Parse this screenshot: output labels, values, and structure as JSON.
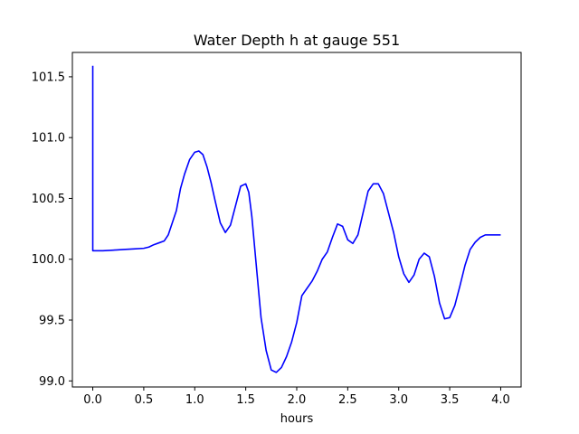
{
  "chart_data": {
    "type": "line",
    "title": "Water Depth h at gauge 551",
    "xlabel": "hours",
    "ylabel": "",
    "xlim": [
      -0.2,
      4.2
    ],
    "ylim": [
      98.95,
      101.7
    ],
    "x_ticks": [
      "0.0",
      "0.5",
      "1.0",
      "1.5",
      "2.0",
      "2.5",
      "3.0",
      "3.5",
      "4.0"
    ],
    "x_tick_values": [
      0.0,
      0.5,
      1.0,
      1.5,
      2.0,
      2.5,
      3.0,
      3.5,
      4.0
    ],
    "y_ticks": [
      "99.0",
      "99.5",
      "100.0",
      "100.5",
      "101.0",
      "101.5"
    ],
    "y_tick_values": [
      99.0,
      99.5,
      100.0,
      100.5,
      101.0,
      101.5
    ],
    "grid": false,
    "series": [
      {
        "color": "#0000ff",
        "x": [
          0.0,
          0.0,
          0.005,
          0.1,
          0.2,
          0.3,
          0.4,
          0.5,
          0.55,
          0.6,
          0.65,
          0.7,
          0.74,
          0.78,
          0.82,
          0.86,
          0.9,
          0.95,
          1.0,
          1.04,
          1.08,
          1.12,
          1.16,
          1.2,
          1.25,
          1.3,
          1.35,
          1.4,
          1.45,
          1.5,
          1.53,
          1.56,
          1.6,
          1.65,
          1.7,
          1.75,
          1.8,
          1.85,
          1.9,
          1.95,
          2.0,
          2.05,
          2.1,
          2.15,
          2.2,
          2.25,
          2.3,
          2.35,
          2.4,
          2.45,
          2.5,
          2.55,
          2.6,
          2.65,
          2.7,
          2.75,
          2.8,
          2.85,
          2.9,
          2.95,
          3.0,
          3.05,
          3.1,
          3.15,
          3.2,
          3.25,
          3.3,
          3.35,
          3.4,
          3.45,
          3.5,
          3.55,
          3.6,
          3.65,
          3.7,
          3.75,
          3.8,
          3.85,
          3.9,
          3.95,
          4.0
        ],
        "values": [
          101.59,
          100.07,
          100.07,
          100.07,
          100.075,
          100.08,
          100.085,
          100.09,
          100.1,
          100.12,
          100.135,
          100.15,
          100.2,
          100.3,
          100.4,
          100.58,
          100.7,
          100.82,
          100.88,
          100.89,
          100.86,
          100.76,
          100.63,
          100.48,
          100.3,
          100.22,
          100.28,
          100.44,
          100.6,
          100.62,
          100.55,
          100.35,
          99.98,
          99.52,
          99.25,
          99.09,
          99.07,
          99.11,
          99.2,
          99.32,
          99.48,
          99.7,
          99.76,
          99.82,
          99.9,
          100.0,
          100.06,
          100.18,
          100.29,
          100.27,
          100.16,
          100.13,
          100.2,
          100.38,
          100.56,
          100.62,
          100.62,
          100.54,
          100.38,
          100.22,
          100.02,
          99.88,
          99.81,
          99.87,
          100.0,
          100.05,
          100.02,
          99.86,
          99.64,
          99.51,
          99.52,
          99.62,
          99.78,
          99.95,
          100.08,
          100.14,
          100.18,
          100.2,
          100.2,
          100.2,
          100.2
        ]
      }
    ]
  }
}
